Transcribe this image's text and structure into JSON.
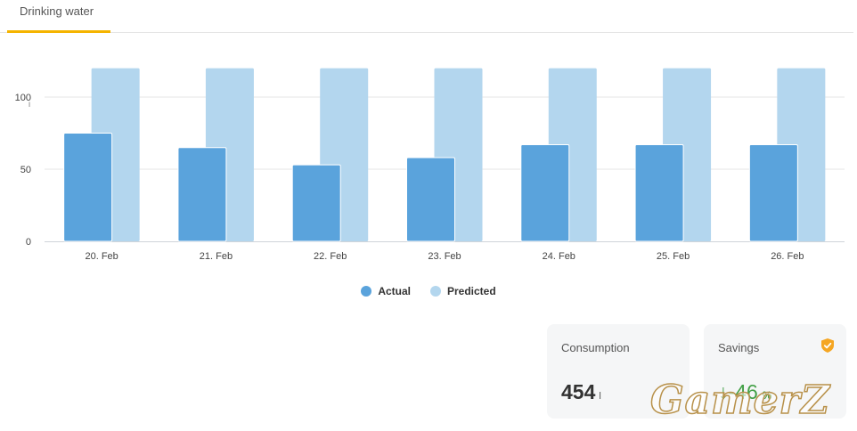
{
  "tab": {
    "label": "Drinking water"
  },
  "chart_data": {
    "type": "bar",
    "categories": [
      "20. Feb",
      "21. Feb",
      "22. Feb",
      "23. Feb",
      "24. Feb",
      "25. Feb",
      "26. Feb"
    ],
    "series": [
      {
        "name": "Actual",
        "color": "#5aa3dc",
        "values": [
          75,
          65,
          53,
          58,
          67,
          67,
          67
        ]
      },
      {
        "name": "Predicted",
        "color": "#b3d6ee",
        "values": [
          120,
          120,
          120,
          120,
          120,
          120,
          120
        ]
      }
    ],
    "yticks": [
      0,
      50,
      100
    ],
    "ytick_sub": "l",
    "ylim": [
      0,
      120
    ],
    "grid": true,
    "legend_position": "bottom-center"
  },
  "consumption": {
    "title": "Consumption",
    "value": "454",
    "unit": "l"
  },
  "savings": {
    "title": "Savings",
    "value": "-46",
    "unit": "%",
    "icon": "shield-check-icon",
    "icon_color": "#f5a623",
    "trend_icon": "arrow-down-icon"
  },
  "watermark": {
    "text": "GamerZ"
  }
}
